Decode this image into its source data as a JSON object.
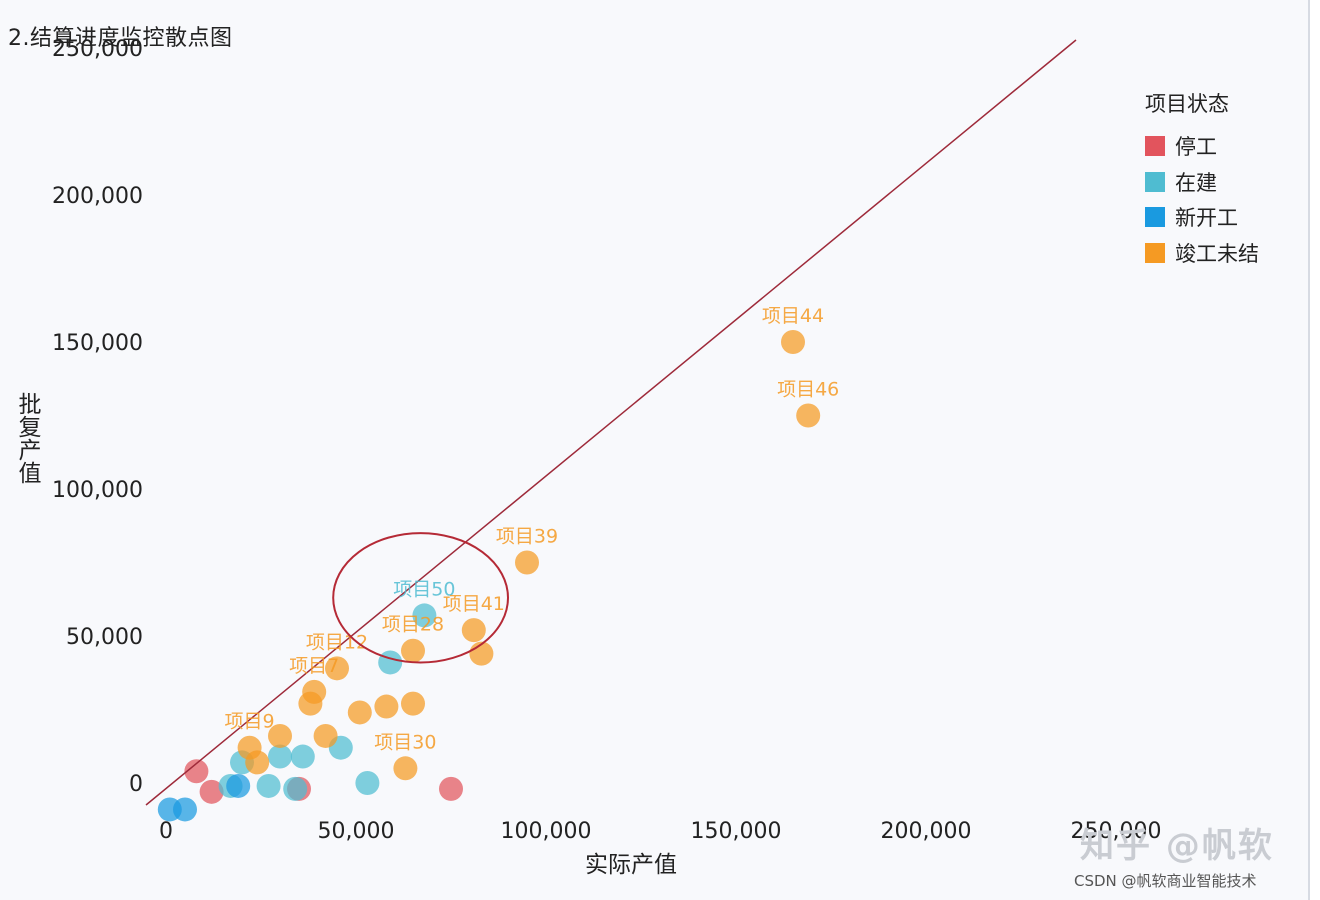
{
  "chart_data": {
    "type": "scatter",
    "title": "2.结算进度监控散点图",
    "xlabel": "实际产值",
    "ylabel": "批复产值",
    "xlim": [
      0,
      250000
    ],
    "ylim": [
      0,
      250000
    ],
    "x_ticks": [
      "0",
      "50,000",
      "100,000",
      "150,000",
      "200,000",
      "250,000"
    ],
    "y_ticks": [
      "0",
      "50,000",
      "100,000",
      "150,000",
      "200,000",
      "250,000"
    ],
    "legend": {
      "title": "项目状态",
      "position": "top-right",
      "entries": [
        {
          "name": "停工",
          "color": "#e2545d"
        },
        {
          "name": "在建",
          "color": "#4fbcd1"
        },
        {
          "name": "新开工",
          "color": "#1a9ae0"
        },
        {
          "name": "竣工未结",
          "color": "#f59a23"
        }
      ]
    },
    "reference_line": {
      "from": [
        0,
        0
      ],
      "to": [
        250000,
        250000
      ],
      "color": "#9e2a3a"
    },
    "series": [
      {
        "name": "停工",
        "color": "#e2545d",
        "points": [
          {
            "x": 8000,
            "y": 4000
          },
          {
            "x": 12000,
            "y": -3000
          },
          {
            "x": 35000,
            "y": -2000
          },
          {
            "x": 75000,
            "y": -2000
          }
        ]
      },
      {
        "name": "在建",
        "color": "#4fbcd1",
        "points": [
          {
            "x": 17000,
            "y": -1000
          },
          {
            "x": 20000,
            "y": 7000
          },
          {
            "x": 27000,
            "y": -1000
          },
          {
            "x": 30000,
            "y": 9000
          },
          {
            "x": 34000,
            "y": -2000
          },
          {
            "x": 36000,
            "y": 9000
          },
          {
            "x": 46000,
            "y": 12000
          },
          {
            "x": 53000,
            "y": 0
          },
          {
            "x": 59000,
            "y": 41000
          },
          {
            "x": 68000,
            "y": 57000,
            "label": "项目50"
          }
        ]
      },
      {
        "name": "新开工",
        "color": "#1a9ae0",
        "points": [
          {
            "x": 1000,
            "y": -9000
          },
          {
            "x": 5000,
            "y": -9000
          },
          {
            "x": 19000,
            "y": -1000
          }
        ]
      },
      {
        "name": "竣工未结",
        "color": "#f59a23",
        "points": [
          {
            "x": 22000,
            "y": 12000,
            "label": "项目9"
          },
          {
            "x": 24000,
            "y": 7000
          },
          {
            "x": 30000,
            "y": 16000
          },
          {
            "x": 38000,
            "y": 27000
          },
          {
            "x": 39000,
            "y": 31000,
            "label": "项目7"
          },
          {
            "x": 42000,
            "y": 16000
          },
          {
            "x": 45000,
            "y": 39000,
            "label": "项目12"
          },
          {
            "x": 51000,
            "y": 24000
          },
          {
            "x": 58000,
            "y": 26000
          },
          {
            "x": 63000,
            "y": 5000,
            "label": "项目30"
          },
          {
            "x": 65000,
            "y": 45000,
            "label": "项目28"
          },
          {
            "x": 65000,
            "y": 27000
          },
          {
            "x": 81000,
            "y": 52000,
            "label": "项目41"
          },
          {
            "x": 83000,
            "y": 44000
          },
          {
            "x": 95000,
            "y": 75000,
            "label": "项目39"
          },
          {
            "x": 165000,
            "y": 150000,
            "label": "项目44"
          },
          {
            "x": 169000,
            "y": 125000,
            "label": "项目46"
          }
        ]
      }
    ],
    "highlight_circle": {
      "cx": 67000,
      "cy": 63000,
      "rx": 23000,
      "ry": 22000,
      "color": "#b52a36"
    }
  },
  "watermark": {
    "zhihu": "知乎 @帆软",
    "csdn": "CSDN @帆软商业智能技术"
  }
}
